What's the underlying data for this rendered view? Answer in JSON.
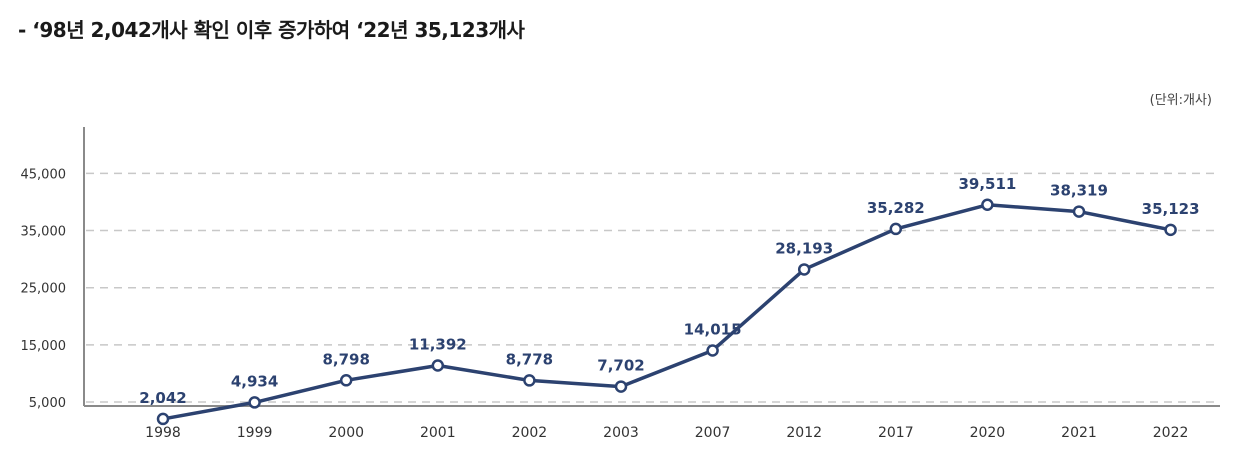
{
  "headline": "- ‘98년 2,042개사 확인 이후 증가하여 ‘22년 35,123개사",
  "chart_data": {
    "type": "line",
    "unit_label": "(단위:개사)",
    "categories": [
      "1998",
      "1999",
      "2000",
      "2001",
      "2002",
      "2003",
      "2007",
      "2012",
      "2017",
      "2020",
      "2021",
      "2022"
    ],
    "series": [
      {
        "values": [
          2042,
          4934,
          8798,
          11392,
          8778,
          7702,
          14015,
          28193,
          35282,
          39511,
          38319,
          35123
        ],
        "labels": [
          "2,042",
          "4,934",
          "8,798",
          "11,392",
          "8,778",
          "7,702",
          "14,015",
          "28,193",
          "35,282",
          "39,511",
          "38,319",
          "35,123"
        ]
      }
    ],
    "yticks": [
      "45,000",
      "35,000",
      "25,000",
      "15,000",
      "5,000"
    ],
    "ytick_values": [
      45000,
      35000,
      25000,
      15000,
      5000
    ],
    "ylim": [
      0,
      45000
    ],
    "grid": true,
    "line_color": "#2c4270",
    "grid_color": "#c8c8c8"
  }
}
